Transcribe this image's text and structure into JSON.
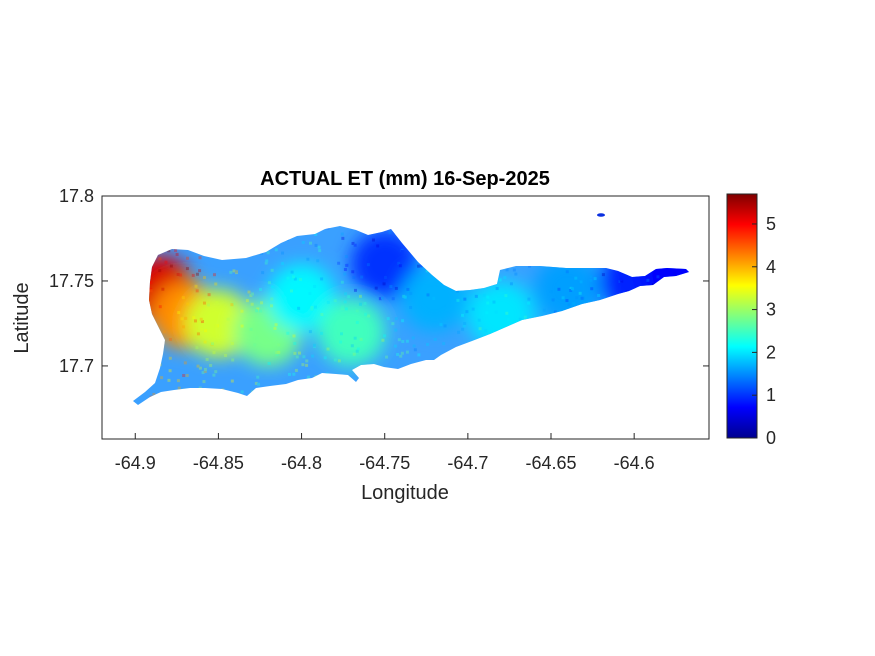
{
  "chart_data": {
    "type": "heatmap",
    "title": "ACTUAL ET (mm) 16-Sep-2025",
    "xlabel": "Longitude",
    "ylabel": "Latitude",
    "xlim": [
      -64.92,
      -64.555
    ],
    "ylim": [
      17.657,
      17.8
    ],
    "x_ticks": [
      -64.9,
      -64.85,
      -64.8,
      -64.75,
      -64.7,
      -64.65,
      -64.6
    ],
    "x_tick_labels": [
      "-64.9",
      "-64.85",
      "-64.8",
      "-64.75",
      "-64.7",
      "-64.65",
      "-64.6"
    ],
    "y_ticks": [
      17.7,
      17.75,
      17.8
    ],
    "y_tick_labels": [
      "17.7",
      "17.75",
      "17.8"
    ],
    "colorbar": {
      "colormap": "jet",
      "range": [
        0,
        5.7
      ],
      "ticks": [
        0,
        1,
        2,
        3,
        4,
        5
      ],
      "tick_labels": [
        "0",
        "1",
        "2",
        "3",
        "4",
        "5"
      ]
    },
    "grid": false,
    "region_values": [
      {
        "lon": -64.885,
        "lat": 17.745,
        "value": 5.2
      },
      {
        "lon": -64.87,
        "lat": 17.73,
        "value": 4.2
      },
      {
        "lon": -64.85,
        "lat": 17.725,
        "value": 3.3
      },
      {
        "lon": -64.82,
        "lat": 17.72,
        "value": 2.8
      },
      {
        "lon": -64.8,
        "lat": 17.74,
        "value": 2.1
      },
      {
        "lon": -64.77,
        "lat": 17.72,
        "value": 2.5
      },
      {
        "lon": -64.75,
        "lat": 17.76,
        "value": 1.0
      },
      {
        "lon": -64.72,
        "lat": 17.74,
        "value": 1.7
      },
      {
        "lon": -64.68,
        "lat": 17.73,
        "value": 2.0
      },
      {
        "lon": -64.64,
        "lat": 17.745,
        "value": 1.6
      },
      {
        "lon": -64.6,
        "lat": 17.75,
        "value": 0.9
      },
      {
        "lon": -64.575,
        "lat": 17.755,
        "value": 0.7
      }
    ]
  },
  "colors": {
    "axis": "#262626",
    "background": "#ffffff"
  }
}
